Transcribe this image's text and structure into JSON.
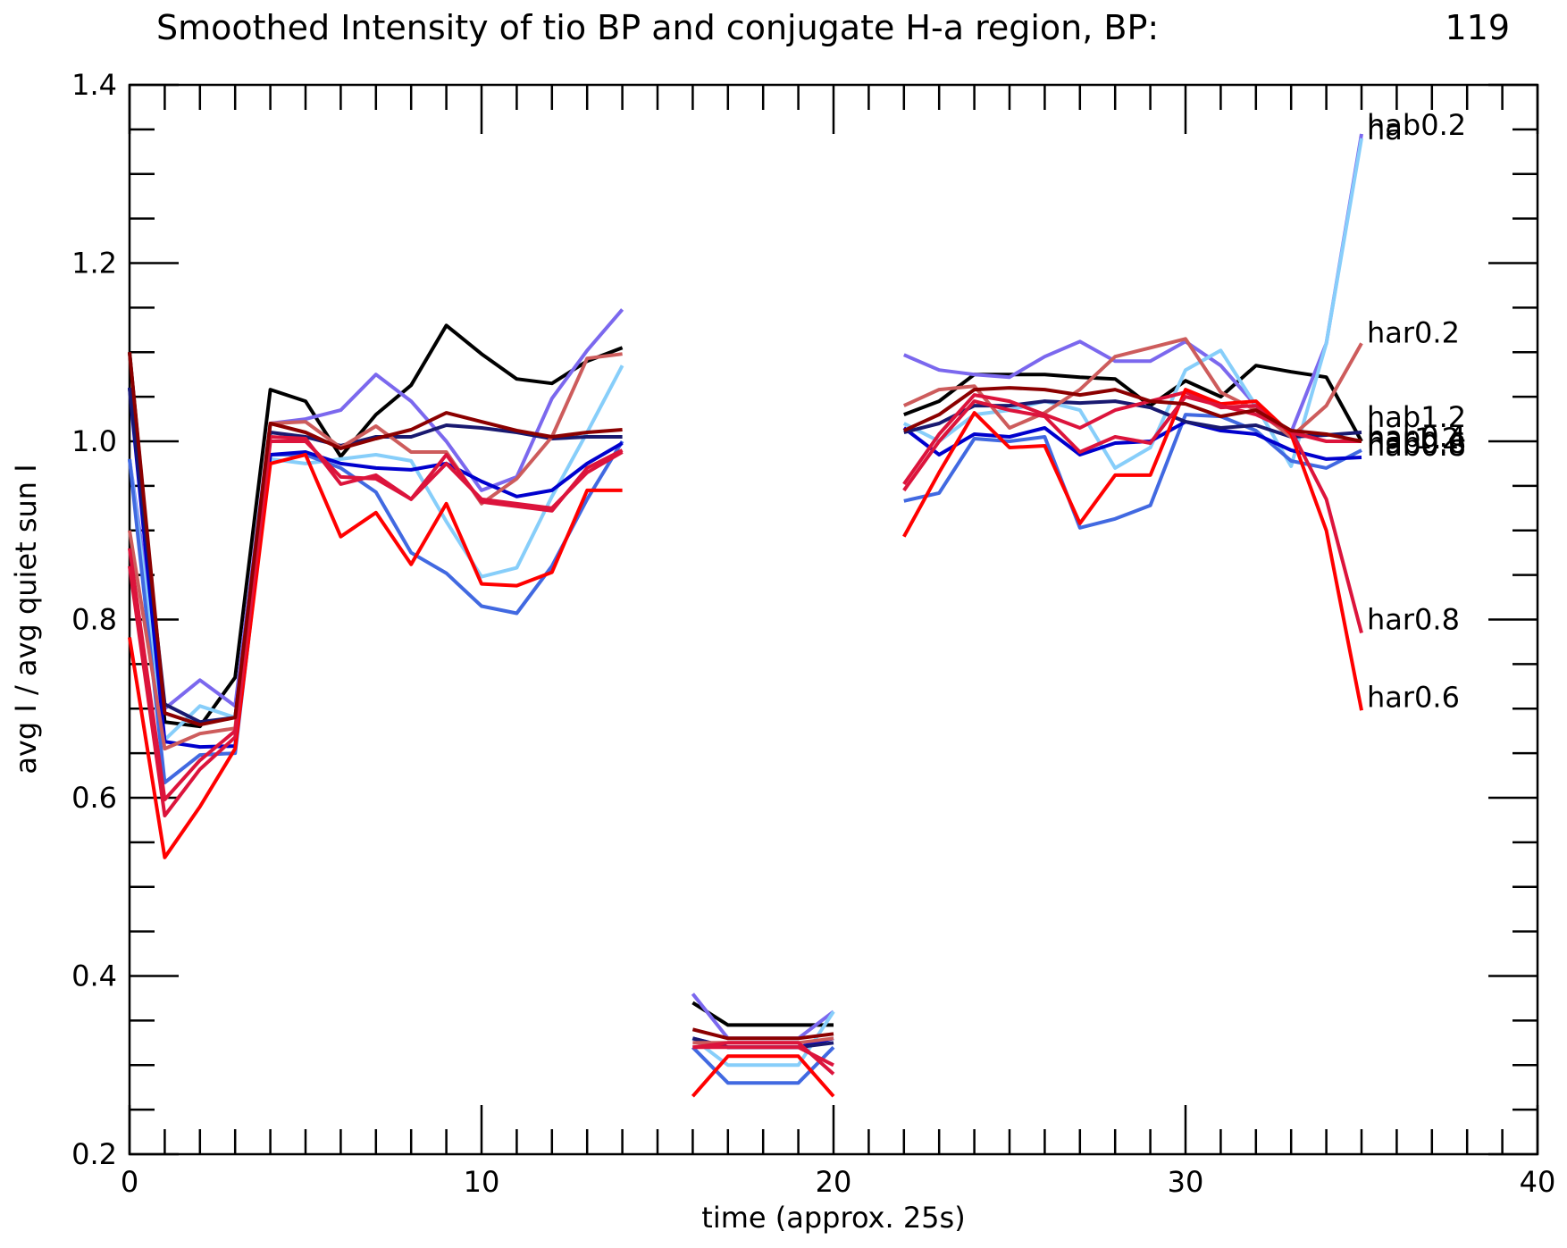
{
  "chart_data": {
    "type": "line",
    "title": "Smoothed Intensity of tio BP and conjugate H-a region, BP:",
    "title_value": "119",
    "xlabel": "time (approx. 25s)",
    "ylabel": "avg I / avg quiet sun I",
    "xlim": [
      0,
      40
    ],
    "ylim": [
      0.2,
      1.4
    ],
    "x_ticks": [
      "0",
      "10",
      "20",
      "30",
      "40"
    ],
    "y_ticks": [
      "0.2",
      "0.4",
      "0.6",
      "0.8",
      "1.0",
      "1.2",
      "1.4"
    ],
    "grid": false,
    "x": [
      0,
      1,
      2,
      3,
      4,
      5,
      6,
      7,
      8,
      9,
      10,
      11,
      12,
      13,
      14,
      15,
      16,
      17,
      18,
      19,
      20,
      21,
      22,
      23,
      24,
      25,
      26,
      27,
      28,
      29,
      30,
      31,
      32,
      33,
      34,
      35
    ],
    "series": [
      {
        "name": "ha",
        "color": "#000000",
        "values": [
          1.1,
          0.685,
          0.68,
          0.735,
          1.058,
          1.045,
          0.983,
          1.03,
          1.063,
          1.13,
          1.098,
          1.07,
          1.065,
          1.09,
          1.105,
          null,
          0.37,
          0.345,
          0.345,
          0.345,
          0.345,
          null,
          1.03,
          1.045,
          1.075,
          1.075,
          1.075,
          1.072,
          1.07,
          1.04,
          1.068,
          1.05,
          1.085,
          1.078,
          1.072,
          1.0
        ]
      },
      {
        "name": "hab0.2",
        "color": "#7b68ee",
        "values": [
          0.98,
          0.7,
          0.732,
          0.703,
          1.02,
          1.025,
          1.035,
          1.075,
          1.045,
          1.0,
          0.945,
          0.96,
          1.048,
          1.102,
          1.148,
          null,
          0.38,
          0.33,
          0.33,
          0.33,
          0.36,
          null,
          1.097,
          1.08,
          1.075,
          1.072,
          1.095,
          1.112,
          1.09,
          1.09,
          1.112,
          1.085,
          1.04,
          1.01,
          1.11,
          1.345
        ]
      },
      {
        "name": "hab0.4",
        "color": "#87cefa",
        "values": [
          0.98,
          0.665,
          0.703,
          0.69,
          0.98,
          0.975,
          0.98,
          0.985,
          0.978,
          0.91,
          0.848,
          0.858,
          0.938,
          1.01,
          1.085,
          null,
          0.33,
          0.3,
          0.3,
          0.3,
          0.36,
          null,
          1.02,
          1.0,
          1.03,
          1.035,
          1.045,
          1.035,
          0.97,
          0.993,
          1.08,
          1.102,
          1.04,
          0.972,
          1.11,
          1.34
        ]
      },
      {
        "name": "hab0.6",
        "color": "#4169e1",
        "values": [
          0.98,
          0.617,
          0.648,
          0.65,
          0.985,
          0.985,
          0.97,
          0.943,
          0.875,
          0.852,
          0.815,
          0.807,
          0.86,
          0.935,
          1.0,
          null,
          0.32,
          0.28,
          0.28,
          0.28,
          0.32,
          null,
          0.933,
          0.942,
          1.003,
          1.0,
          1.005,
          0.903,
          0.913,
          0.928,
          1.03,
          1.028,
          1.012,
          0.978,
          0.97,
          0.99
        ]
      },
      {
        "name": "hab0.8",
        "color": "#0000cd",
        "values": [
          1.06,
          0.663,
          0.657,
          0.658,
          0.985,
          0.988,
          0.975,
          0.97,
          0.968,
          0.975,
          0.955,
          0.938,
          0.945,
          0.975,
          0.998,
          null,
          0.33,
          0.32,
          0.32,
          0.32,
          0.33,
          null,
          1.015,
          0.985,
          1.008,
          1.005,
          1.015,
          0.985,
          0.998,
          1.0,
          1.022,
          1.012,
          1.008,
          0.99,
          0.98,
          0.982
        ]
      },
      {
        "name": "hab1.2",
        "color": "#191970",
        "values": [
          1.06,
          0.705,
          0.685,
          0.69,
          1.01,
          1.005,
          0.995,
          1.005,
          1.005,
          1.018,
          1.015,
          1.01,
          1.003,
          1.005,
          1.005,
          null,
          0.33,
          0.32,
          0.32,
          0.32,
          0.325,
          null,
          1.01,
          1.02,
          1.04,
          1.04,
          1.045,
          1.043,
          1.045,
          1.038,
          1.022,
          1.015,
          1.018,
          1.005,
          1.007,
          1.01
        ]
      },
      {
        "name": "har0.2",
        "color": "#cd5c5c",
        "values": [
          0.9,
          0.655,
          0.672,
          0.678,
          1.02,
          1.022,
          0.993,
          1.017,
          0.988,
          0.988,
          0.93,
          0.958,
          1.005,
          1.093,
          1.098,
          null,
          0.325,
          0.325,
          0.325,
          0.325,
          0.33,
          null,
          1.04,
          1.058,
          1.062,
          1.015,
          1.032,
          1.058,
          1.095,
          1.105,
          1.115,
          1.055,
          1.035,
          1.005,
          1.04,
          1.11
        ]
      },
      {
        "name": "har0.4",
        "color": "#dc143c",
        "values": [
          0.88,
          0.598,
          0.642,
          0.675,
          1.005,
          1.003,
          0.952,
          0.962,
          0.935,
          0.985,
          0.932,
          0.927,
          0.922,
          0.97,
          0.99,
          null,
          0.32,
          0.325,
          0.325,
          0.325,
          0.29,
          null,
          0.952,
          1.008,
          1.052,
          1.045,
          1.03,
          1.015,
          1.035,
          1.045,
          1.055,
          1.038,
          1.04,
          1.01,
          1.0,
          1.0
        ]
      },
      {
        "name": "har0.6",
        "color": "#ff0000",
        "values": [
          0.78,
          0.533,
          0.59,
          0.655,
          0.975,
          0.985,
          0.893,
          0.92,
          0.862,
          0.93,
          0.84,
          0.838,
          0.853,
          0.945,
          0.945,
          null,
          0.265,
          0.31,
          0.31,
          0.31,
          0.265,
          null,
          0.893,
          0.965,
          1.032,
          0.993,
          0.995,
          0.908,
          0.962,
          0.962,
          1.058,
          1.042,
          1.045,
          1.008,
          0.9,
          0.698
        ]
      },
      {
        "name": "har0.8",
        "color": "#dc143c",
        "values": [
          0.86,
          0.58,
          0.632,
          0.668,
          1.0,
          1.0,
          0.96,
          0.958,
          0.935,
          0.975,
          0.935,
          0.93,
          0.925,
          0.965,
          0.988,
          null,
          0.32,
          0.32,
          0.32,
          0.32,
          0.3,
          null,
          0.945,
          1.0,
          1.045,
          1.035,
          1.028,
          0.988,
          1.005,
          0.998,
          1.05,
          1.04,
          1.03,
          1.012,
          0.935,
          0.785
        ]
      },
      {
        "name": "har1.2",
        "color": "#8b0000",
        "values": [
          1.1,
          0.695,
          0.682,
          0.69,
          1.02,
          1.01,
          0.992,
          1.003,
          1.013,
          1.032,
          1.022,
          1.012,
          1.005,
          1.01,
          1.013,
          null,
          0.34,
          0.33,
          0.33,
          0.33,
          0.335,
          null,
          1.012,
          1.03,
          1.058,
          1.06,
          1.058,
          1.052,
          1.058,
          1.045,
          1.042,
          1.028,
          1.035,
          1.012,
          1.008,
          1.0
        ]
      }
    ],
    "series_labels": [
      {
        "text": "hab0.2",
        "value": 1.355
      },
      {
        "text": "ha",
        "value": 1.35
      },
      {
        "text": "har0.2",
        "value": 1.122
      },
      {
        "text": "hab1.2",
        "value": 1.027
      },
      {
        "text": "har1.2",
        "value": 1.003
      },
      {
        "text": "hab0.4",
        "value": 1.005
      },
      {
        "text": "hab0.6",
        "value": 0.998
      },
      {
        "text": "hab0.8",
        "value": 0.995
      },
      {
        "text": "har0.8",
        "value": 0.8
      },
      {
        "text": "har0.6",
        "value": 0.713
      }
    ]
  }
}
